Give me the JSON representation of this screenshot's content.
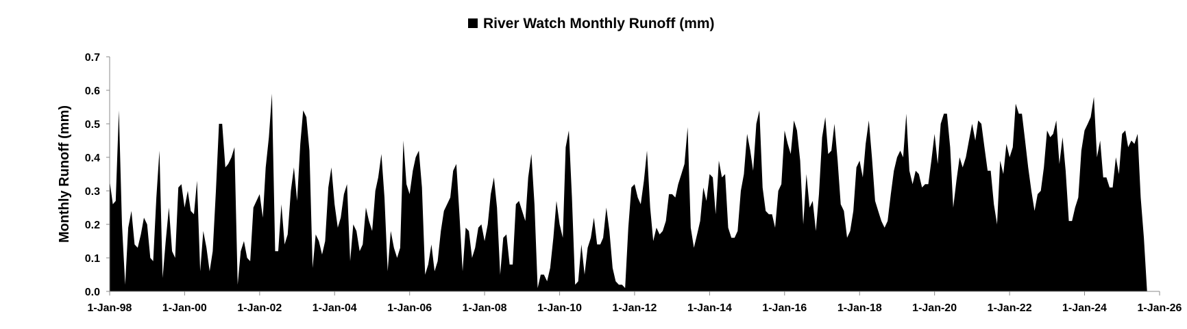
{
  "chart_data": {
    "type": "area",
    "title": "",
    "xlabel": "",
    "ylabel": "Monthly Runoff (mm)",
    "ylim": [
      0,
      0.7
    ],
    "y_ticks": [
      "0.0",
      "0.1",
      "0.2",
      "0.3",
      "0.4",
      "0.5",
      "0.6",
      "0.7"
    ],
    "x_range": [
      "1998-01-01",
      "2026-01-01"
    ],
    "x_ticks": [
      {
        "date": "1998-01-01",
        "label": "1-Jan-98"
      },
      {
        "date": "2000-01-01",
        "label": "1-Jan-00"
      },
      {
        "date": "2002-01-01",
        "label": "1-Jan-02"
      },
      {
        "date": "2004-01-01",
        "label": "1-Jan-04"
      },
      {
        "date": "2006-01-01",
        "label": "1-Jan-06"
      },
      {
        "date": "2008-01-01",
        "label": "1-Jan-08"
      },
      {
        "date": "2010-01-01",
        "label": "1-Jan-10"
      },
      {
        "date": "2012-01-01",
        "label": "1-Jan-12"
      },
      {
        "date": "2014-01-01",
        "label": "1-Jan-14"
      },
      {
        "date": "2016-01-01",
        "label": "1-Jan-16"
      },
      {
        "date": "2018-01-01",
        "label": "1-Jan-18"
      },
      {
        "date": "2020-01-01",
        "label": "1-Jan-20"
      },
      {
        "date": "2022-01-01",
        "label": "1-Jan-22"
      },
      {
        "date": "2024-01-01",
        "label": "1-Jan-24"
      },
      {
        "date": "2026-01-01",
        "label": "1-Jan-26"
      }
    ],
    "grid": false,
    "legend_position": "top-center",
    "series": [
      {
        "name": "River Watch Monthly Runoff (mm)",
        "color": "#000000",
        "start": "1998-01-01",
        "step": "monthly",
        "values": [
          0.33,
          0.26,
          0.27,
          0.54,
          0.2,
          0.02,
          0.19,
          0.24,
          0.14,
          0.13,
          0.17,
          0.22,
          0.2,
          0.1,
          0.09,
          0.28,
          0.42,
          0.04,
          0.15,
          0.25,
          0.12,
          0.1,
          0.31,
          0.32,
          0.25,
          0.3,
          0.24,
          0.23,
          0.33,
          0.06,
          0.18,
          0.13,
          0.06,
          0.12,
          0.3,
          0.5,
          0.5,
          0.37,
          0.38,
          0.4,
          0.43,
          0.02,
          0.12,
          0.15,
          0.1,
          0.09,
          0.25,
          0.27,
          0.29,
          0.22,
          0.37,
          0.46,
          0.59,
          0.12,
          0.12,
          0.26,
          0.14,
          0.17,
          0.3,
          0.37,
          0.27,
          0.44,
          0.54,
          0.52,
          0.42,
          0.07,
          0.17,
          0.15,
          0.11,
          0.15,
          0.31,
          0.37,
          0.26,
          0.19,
          0.22,
          0.29,
          0.32,
          0.09,
          0.2,
          0.18,
          0.12,
          0.14,
          0.25,
          0.21,
          0.18,
          0.3,
          0.34,
          0.41,
          0.28,
          0.06,
          0.18,
          0.13,
          0.1,
          0.13,
          0.45,
          0.32,
          0.29,
          0.36,
          0.4,
          0.42,
          0.31,
          0.05,
          0.08,
          0.14,
          0.06,
          0.09,
          0.18,
          0.24,
          0.26,
          0.28,
          0.36,
          0.38,
          0.23,
          0.06,
          0.19,
          0.18,
          0.1,
          0.13,
          0.19,
          0.2,
          0.15,
          0.2,
          0.29,
          0.34,
          0.25,
          0.05,
          0.16,
          0.17,
          0.08,
          0.08,
          0.26,
          0.27,
          0.24,
          0.21,
          0.34,
          0.41,
          0.26,
          0.01,
          0.05,
          0.05,
          0.03,
          0.07,
          0.16,
          0.27,
          0.2,
          0.16,
          0.43,
          0.48,
          0.28,
          0.02,
          0.03,
          0.14,
          0.05,
          0.13,
          0.16,
          0.22,
          0.14,
          0.14,
          0.16,
          0.25,
          0.18,
          0.07,
          0.03,
          0.02,
          0.02,
          0.01,
          0.19,
          0.31,
          0.32,
          0.28,
          0.26,
          0.33,
          0.42,
          0.25,
          0.15,
          0.19,
          0.17,
          0.18,
          0.21,
          0.29,
          0.29,
          0.28,
          0.32,
          0.35,
          0.38,
          0.49,
          0.19,
          0.13,
          0.17,
          0.21,
          0.31,
          0.27,
          0.35,
          0.34,
          0.23,
          0.39,
          0.34,
          0.35,
          0.19,
          0.16,
          0.16,
          0.18,
          0.3,
          0.35,
          0.47,
          0.42,
          0.36,
          0.5,
          0.54,
          0.31,
          0.24,
          0.23,
          0.23,
          0.19,
          0.3,
          0.32,
          0.48,
          0.44,
          0.41,
          0.51,
          0.48,
          0.39,
          0.2,
          0.35,
          0.25,
          0.27,
          0.18,
          0.29,
          0.46,
          0.52,
          0.41,
          0.42,
          0.5,
          0.39,
          0.26,
          0.24,
          0.16,
          0.18,
          0.24,
          0.37,
          0.39,
          0.34,
          0.44,
          0.51,
          0.4,
          0.27,
          0.24,
          0.21,
          0.19,
          0.21,
          0.29,
          0.36,
          0.4,
          0.42,
          0.4,
          0.53,
          0.36,
          0.32,
          0.36,
          0.35,
          0.31,
          0.32,
          0.32,
          0.39,
          0.47,
          0.38,
          0.5,
          0.53,
          0.53,
          0.43,
          0.25,
          0.33,
          0.4,
          0.37,
          0.4,
          0.45,
          0.5,
          0.45,
          0.51,
          0.5,
          0.43,
          0.36,
          0.36,
          0.26,
          0.2,
          0.39,
          0.35,
          0.44,
          0.4,
          0.43,
          0.56,
          0.53,
          0.53,
          0.45,
          0.37,
          0.3,
          0.24,
          0.29,
          0.3,
          0.37,
          0.48,
          0.46,
          0.47,
          0.51,
          0.38,
          0.46,
          0.36,
          0.21,
          0.21,
          0.25,
          0.28,
          0.42,
          0.48,
          0.5,
          0.52,
          0.58,
          0.4,
          0.45,
          0.34,
          0.34,
          0.31,
          0.31,
          0.4,
          0.35,
          0.47,
          0.48,
          0.43,
          0.45,
          0.44,
          0.47,
          0.28,
          0.16,
          0.0
        ]
      }
    ]
  }
}
